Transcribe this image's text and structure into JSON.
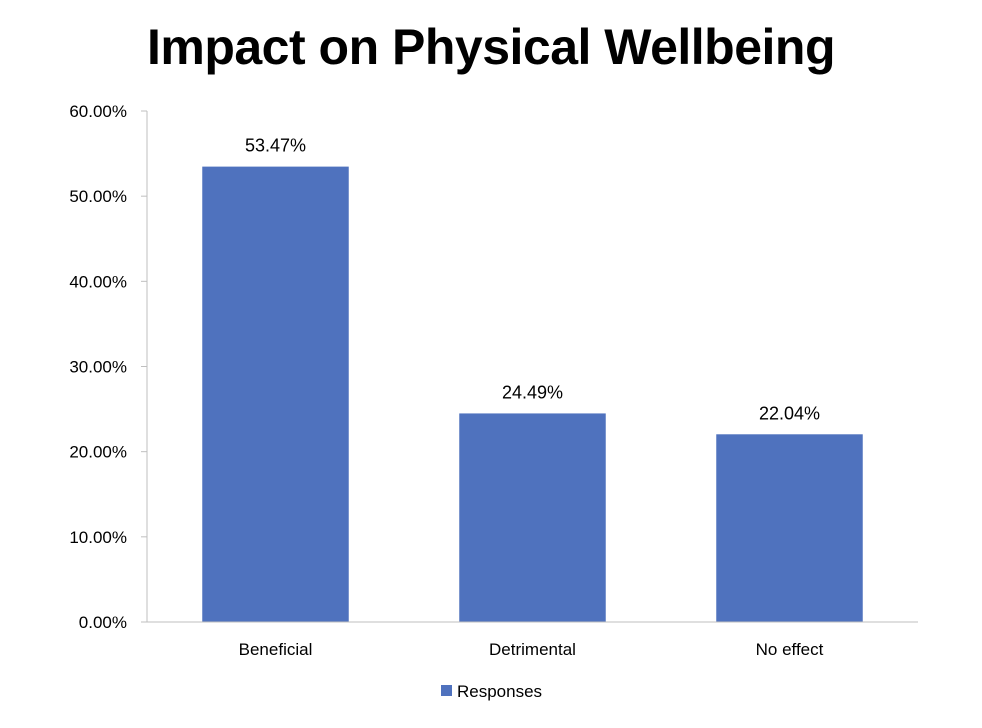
{
  "chart_data": {
    "type": "bar",
    "title": "Impact on Physical Wellbeing",
    "categories": [
      "Beneficial",
      "Detrimental",
      "No effect"
    ],
    "series": [
      {
        "name": "Responses",
        "values": [
          53.47,
          24.49,
          22.04
        ],
        "color": "#4F72BE"
      }
    ],
    "data_labels": [
      "53.47%",
      "24.49%",
      "22.04%"
    ],
    "ylim": [
      0,
      60
    ],
    "yticks": [
      0,
      10,
      20,
      30,
      40,
      50,
      60
    ],
    "ytick_labels": [
      "0.00%",
      "10.00%",
      "20.00%",
      "30.00%",
      "40.00%",
      "50.00%",
      "60.00%"
    ],
    "grid": false,
    "legend": "bottom-center"
  }
}
